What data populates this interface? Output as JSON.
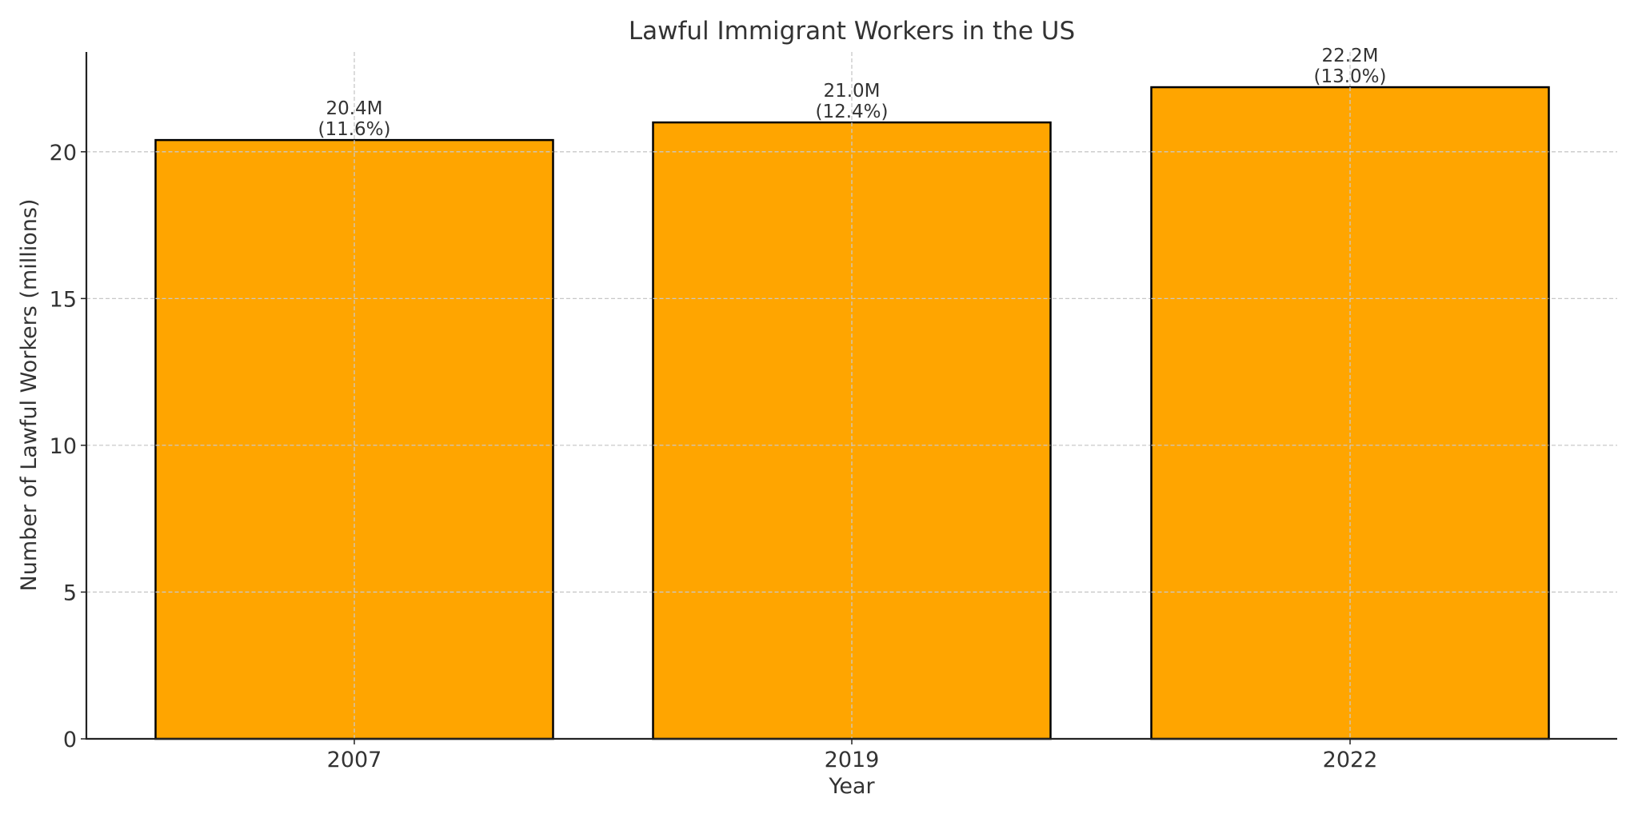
{
  "chart_data": {
    "type": "bar",
    "title": "Lawful Immigrant Workers in the US",
    "xlabel": "Year",
    "ylabel": "Number of Lawful Workers (millions)",
    "categories": [
      "2007",
      "2019",
      "2022"
    ],
    "values": [
      20.4,
      21.0,
      22.2
    ],
    "data_labels": [
      "20.4M\n(11.6%)",
      "21.0M\n(12.4%)",
      "22.2M\n(13.0%)"
    ],
    "label_lines": [
      [
        "20.4M",
        "(11.6%)"
      ],
      [
        "21.0M",
        "(12.4%)"
      ],
      [
        "22.2M",
        "(13.0%)"
      ]
    ],
    "percent_of_workforce": [
      11.6,
      12.4,
      13.0
    ],
    "ylim": [
      0,
      23.4
    ],
    "yticks": [
      0,
      5,
      10,
      15,
      20
    ],
    "grid": true,
    "grid_style": "dashed",
    "legend": null,
    "bar_color": "#FFA500",
    "bar_edge_color": "#000000"
  }
}
